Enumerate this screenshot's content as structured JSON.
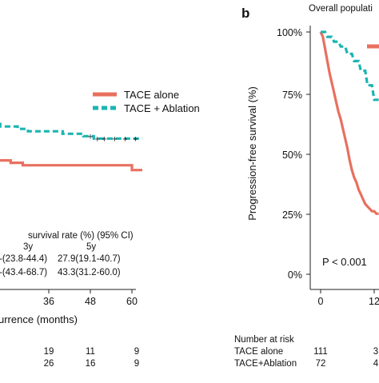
{
  "chart_data": [
    {
      "type": "line",
      "panel": "a",
      "xlabel_fragment": "urrence (months)",
      "x_ticks": [
        "36",
        "48",
        "60"
      ],
      "legend": [
        "TACE  alone",
        "TACE + Ablation"
      ],
      "colors": {
        "tace_alone": "#e8705f",
        "tace_ablation": "#1bb5b2"
      },
      "series": [
        {
          "name": "TACE  alone",
          "x": [
            0,
            12.8,
            12.8,
            25,
            25,
            28.5,
            28.5,
            60,
            60,
            63
          ],
          "y": [
            0.48,
            0.48,
            0.47,
            0.47,
            0.46,
            0.46,
            0.45,
            0.45,
            0.43,
            0.43
          ]
        },
        {
          "name": "TACE + Ablation",
          "x": [
            0,
            12.8,
            12.8,
            17,
            17,
            22,
            22,
            27,
            27,
            30,
            30,
            40,
            40,
            46,
            46,
            49,
            49,
            63
          ],
          "y": [
            0.64,
            0.64,
            0.63,
            0.63,
            0.62,
            0.62,
            0.61,
            0.61,
            0.6,
            0.6,
            0.59,
            0.59,
            0.58,
            0.58,
            0.57,
            0.57,
            0.56,
            0.56
          ]
        }
      ],
      "survival_table": {
        "title": "survival rate (%) (95% CI)",
        "col_3y": "3y",
        "col_5y": "5y",
        "rows": [
          {
            "y3": "-(23.8-44.4)",
            "y5": "27.9(19.1-40.7)"
          },
          {
            "y3": "-(43.4-68.7)",
            "y5": "43.3(31.2-60.0)"
          }
        ]
      },
      "risk_rows": [
        [
          "19",
          "11",
          "9"
        ],
        [
          "26",
          "16",
          "9"
        ]
      ]
    },
    {
      "type": "line",
      "panel": "b",
      "panel_label": "b",
      "title_fragment": "Overall populati",
      "ylabel": "Progression-free survival (%)",
      "y_ticks": [
        "100%",
        "75%",
        "50%",
        "25%",
        "0%"
      ],
      "x_ticks": [
        "0",
        "12"
      ],
      "ylim": [
        0,
        1
      ],
      "pvalue": "P < 0.001",
      "series": [
        {
          "name": "TACE  alone",
          "x": [
            0,
            0.5,
            1,
            1.5,
            2,
            2.5,
            3,
            3.5,
            4,
            4.5,
            5,
            5.5,
            6,
            6.5,
            7,
            7.5,
            8,
            8.5,
            9,
            9.5,
            10,
            10.5,
            11,
            11.5,
            12,
            12.5,
            13
          ],
          "y": [
            1.0,
            0.98,
            0.93,
            0.88,
            0.83,
            0.79,
            0.75,
            0.71,
            0.67,
            0.64,
            0.6,
            0.56,
            0.52,
            0.47,
            0.43,
            0.4,
            0.38,
            0.35,
            0.33,
            0.31,
            0.29,
            0.28,
            0.27,
            0.26,
            0.26,
            0.25,
            0.25
          ]
        },
        {
          "name": "TACE+Ablation",
          "x": [
            0,
            1,
            1.5,
            2.5,
            3,
            4,
            4.5,
            5.5,
            6,
            7,
            7.5,
            8.5,
            9,
            10,
            10.5,
            11.5,
            12,
            13
          ],
          "y": [
            1.0,
            1.0,
            0.98,
            0.98,
            0.96,
            0.96,
            0.94,
            0.94,
            0.91,
            0.91,
            0.88,
            0.88,
            0.84,
            0.84,
            0.78,
            0.78,
            0.72,
            0.72
          ]
        }
      ],
      "risk_table": {
        "title": "Number at risk",
        "rows": [
          {
            "label": "TACE  alone",
            "values": [
              "111",
              "3"
            ]
          },
          {
            "label": "TACE+Ablation",
            "values": [
              "72",
              "4"
            ]
          }
        ]
      }
    }
  ]
}
